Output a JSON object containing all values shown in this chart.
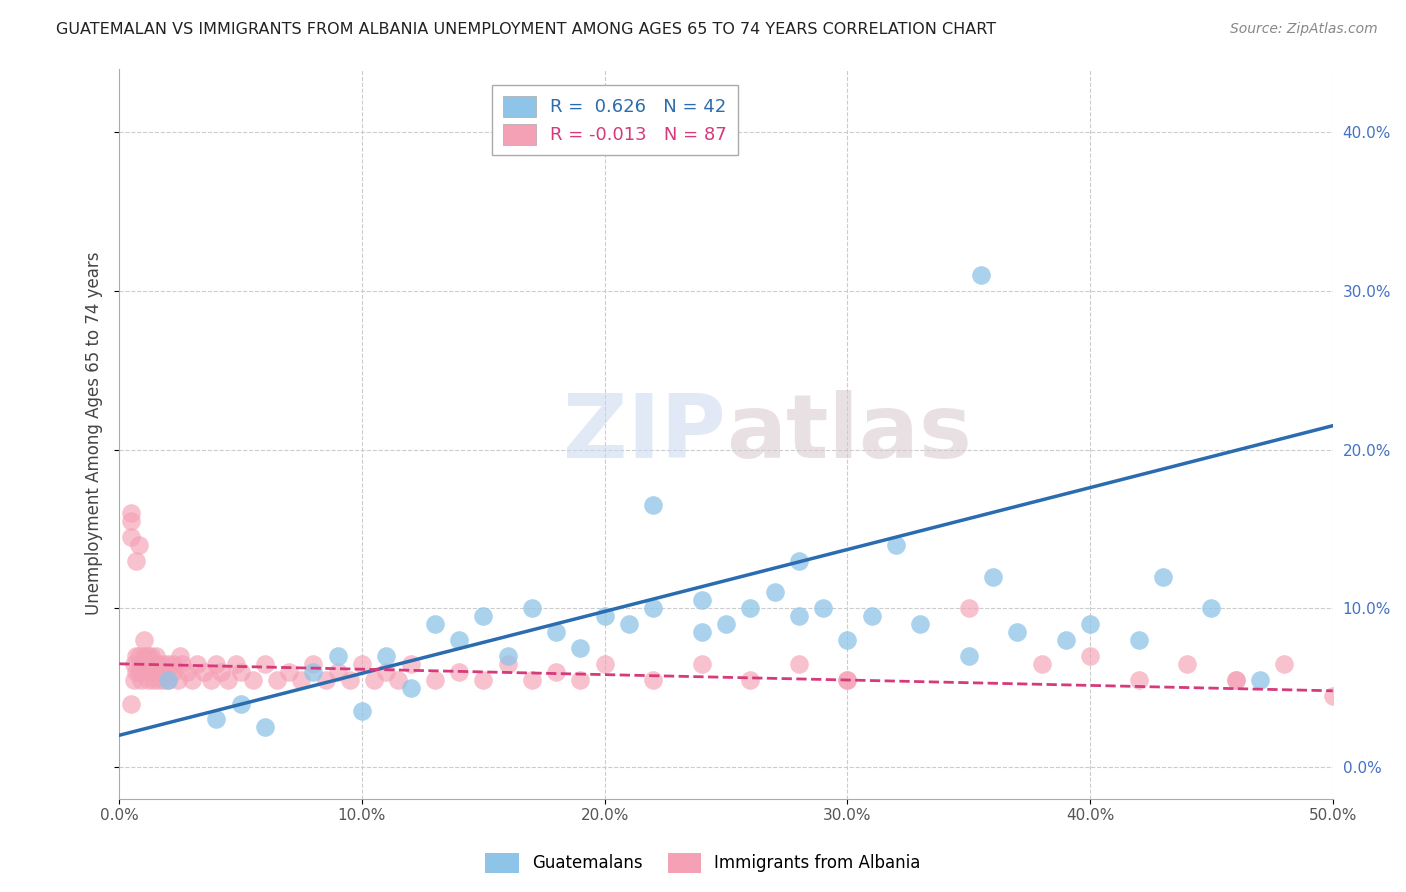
{
  "title": "GUATEMALAN VS IMMIGRANTS FROM ALBANIA UNEMPLOYMENT AMONG AGES 65 TO 74 YEARS CORRELATION CHART",
  "source": "Source: ZipAtlas.com",
  "ylabel": "Unemployment Among Ages 65 to 74 years",
  "legend_label_1": "Guatemalans",
  "legend_label_2": "Immigrants from Albania",
  "R1": 0.626,
  "N1": 42,
  "R2": -0.013,
  "N2": 87,
  "color_blue": "#8ec4e8",
  "color_blue_line": "#2b6cb0",
  "color_pink": "#f4a0b5",
  "color_pink_line": "#d63a7a",
  "xlim": [
    0.0,
    0.5
  ],
  "ylim": [
    -0.02,
    0.44
  ],
  "x_ticks": [
    0.0,
    0.1,
    0.2,
    0.3,
    0.4,
    0.5
  ],
  "x_tick_labels": [
    "0.0%",
    "10.0%",
    "20.0%",
    "30.0%",
    "40.0%",
    "50.0%"
  ],
  "y_ticks": [
    0.0,
    0.1,
    0.2,
    0.3,
    0.4
  ],
  "y_tick_labels": [
    "0.0%",
    "10.0%",
    "20.0%",
    "30.0%",
    "40.0%"
  ],
  "watermark_left": "ZIP",
  "watermark_right": "atlas",
  "background_color": "#ffffff",
  "grid_color": "#cccccc",
  "blue_x": [
    0.02,
    0.04,
    0.05,
    0.06,
    0.08,
    0.09,
    0.1,
    0.11,
    0.12,
    0.13,
    0.14,
    0.15,
    0.16,
    0.17,
    0.18,
    0.19,
    0.2,
    0.21,
    0.22,
    0.22,
    0.24,
    0.24,
    0.25,
    0.26,
    0.27,
    0.28,
    0.28,
    0.29,
    0.3,
    0.31,
    0.32,
    0.33,
    0.35,
    0.36,
    0.37,
    0.39,
    0.4,
    0.42,
    0.43,
    0.45,
    0.47,
    0.355
  ],
  "blue_y": [
    0.055,
    0.03,
    0.04,
    0.025,
    0.06,
    0.07,
    0.035,
    0.07,
    0.05,
    0.09,
    0.08,
    0.095,
    0.07,
    0.1,
    0.085,
    0.075,
    0.095,
    0.09,
    0.1,
    0.165,
    0.085,
    0.105,
    0.09,
    0.1,
    0.11,
    0.095,
    0.13,
    0.1,
    0.08,
    0.095,
    0.14,
    0.09,
    0.07,
    0.12,
    0.085,
    0.08,
    0.09,
    0.08,
    0.12,
    0.1,
    0.055,
    0.31
  ],
  "pink_x": [
    0.005,
    0.005,
    0.005,
    0.005,
    0.006,
    0.006,
    0.007,
    0.007,
    0.007,
    0.008,
    0.008,
    0.008,
    0.009,
    0.009,
    0.01,
    0.01,
    0.01,
    0.01,
    0.012,
    0.012,
    0.012,
    0.013,
    0.013,
    0.014,
    0.014,
    0.015,
    0.015,
    0.016,
    0.016,
    0.017,
    0.018,
    0.018,
    0.019,
    0.02,
    0.02,
    0.022,
    0.022,
    0.024,
    0.025,
    0.026,
    0.028,
    0.03,
    0.032,
    0.035,
    0.038,
    0.04,
    0.042,
    0.045,
    0.048,
    0.05,
    0.055,
    0.06,
    0.065,
    0.07,
    0.075,
    0.08,
    0.085,
    0.09,
    0.095,
    0.1,
    0.105,
    0.11,
    0.115,
    0.12,
    0.13,
    0.14,
    0.15,
    0.16,
    0.17,
    0.18,
    0.19,
    0.2,
    0.22,
    0.24,
    0.26,
    0.28,
    0.3,
    0.35,
    0.4,
    0.42,
    0.44,
    0.46,
    0.48,
    0.3,
    0.38,
    0.46,
    0.5
  ],
  "pink_y": [
    0.16,
    0.155,
    0.145,
    0.04,
    0.055,
    0.065,
    0.06,
    0.07,
    0.13,
    0.06,
    0.07,
    0.14,
    0.055,
    0.065,
    0.06,
    0.065,
    0.07,
    0.08,
    0.055,
    0.065,
    0.07,
    0.06,
    0.07,
    0.055,
    0.065,
    0.06,
    0.07,
    0.055,
    0.065,
    0.06,
    0.055,
    0.065,
    0.06,
    0.055,
    0.065,
    0.06,
    0.065,
    0.055,
    0.07,
    0.065,
    0.06,
    0.055,
    0.065,
    0.06,
    0.055,
    0.065,
    0.06,
    0.055,
    0.065,
    0.06,
    0.055,
    0.065,
    0.055,
    0.06,
    0.055,
    0.065,
    0.055,
    0.06,
    0.055,
    0.065,
    0.055,
    0.06,
    0.055,
    0.065,
    0.055,
    0.06,
    0.055,
    0.065,
    0.055,
    0.06,
    0.055,
    0.065,
    0.055,
    0.065,
    0.055,
    0.065,
    0.055,
    0.1,
    0.07,
    0.055,
    0.065,
    0.055,
    0.065,
    0.055,
    0.065,
    0.055,
    0.045
  ],
  "blue_line_x": [
    0.0,
    0.5
  ],
  "blue_line_y": [
    0.02,
    0.215
  ],
  "pink_line_x": [
    0.0,
    0.5
  ],
  "pink_line_y": [
    0.065,
    0.048
  ]
}
